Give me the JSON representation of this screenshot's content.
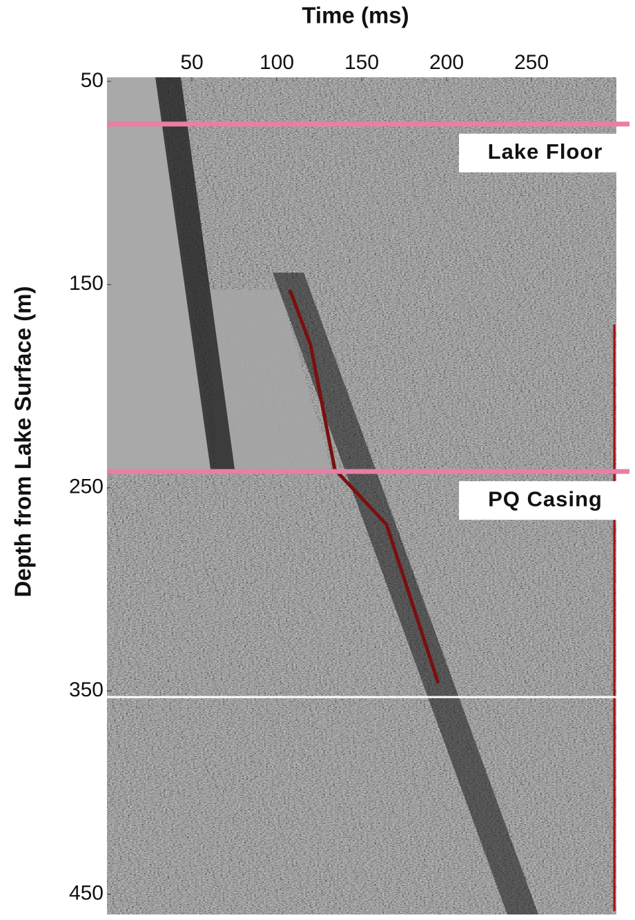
{
  "chart_data": {
    "type": "seismic",
    "title": "Time (ms)",
    "y_label": "Depth from Lake Surface (m)",
    "xlim": [
      0,
      300
    ],
    "xticks": [
      50,
      100,
      150,
      200,
      250
    ],
    "ylim": [
      48,
      460
    ],
    "yticks": [
      50,
      150,
      250,
      350,
      450
    ],
    "y_inverted": true,
    "reference_lines": [
      {
        "label": "Lake Floor",
        "value": 71,
        "color": "#e87fa6"
      },
      {
        "label": "PQ Casing",
        "value": 242,
        "color": "#e87fa6"
      },
      {
        "value": 353,
        "color": "#ffffff"
      }
    ]
  }
}
